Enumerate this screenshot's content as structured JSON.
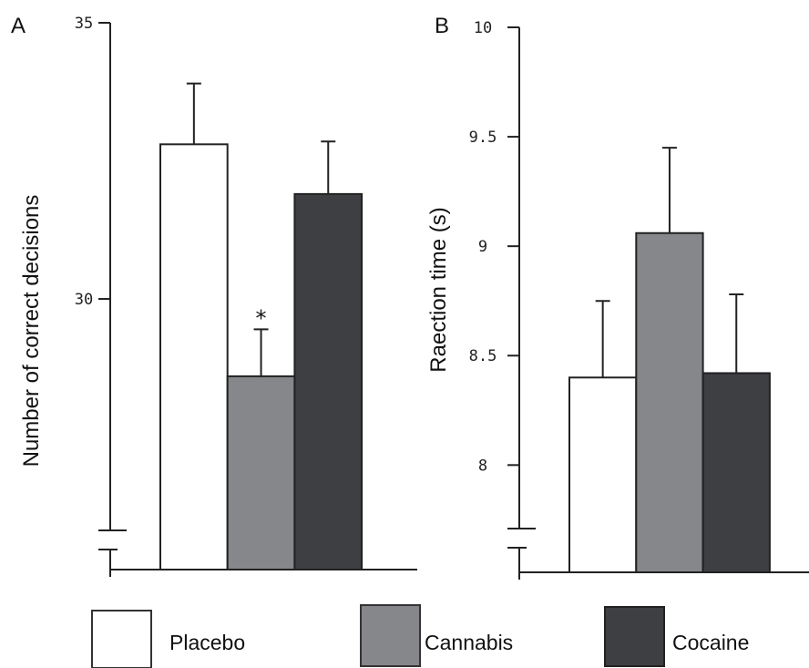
{
  "legend": [
    {
      "label": "Placebo",
      "color": "#ffffff"
    },
    {
      "label": "Cannabis",
      "color": "#86878a"
    },
    {
      "label": "Cocaine",
      "color": "#3e3f43"
    }
  ],
  "chart_data": [
    {
      "type": "bar",
      "panel_label": "A",
      "categories": [
        "Placebo",
        "Cannabis",
        "Cocaine"
      ],
      "values": [
        32.8,
        28.6,
        31.9
      ],
      "errors": [
        1.1,
        0.85,
        0.95
      ],
      "annotations": [
        {
          "category": "Cannabis",
          "text": "*"
        }
      ],
      "ylabel": "Number of correct decisions",
      "ylim": [
        25.1,
        35
      ],
      "yticks": [
        30,
        35
      ],
      "axis_break": true
    },
    {
      "type": "bar",
      "panel_label": "B",
      "categories": [
        "Placebo",
        "Cannabis",
        "Cocaine"
      ],
      "values": [
        8.4,
        9.06,
        8.42
      ],
      "errors": [
        0.35,
        0.39,
        0.36
      ],
      "ylabel": "Raection time (s)",
      "ylim": [
        7.51,
        10
      ],
      "yticks": [
        8,
        8.5,
        9,
        9.5,
        10
      ],
      "axis_break": true
    }
  ]
}
